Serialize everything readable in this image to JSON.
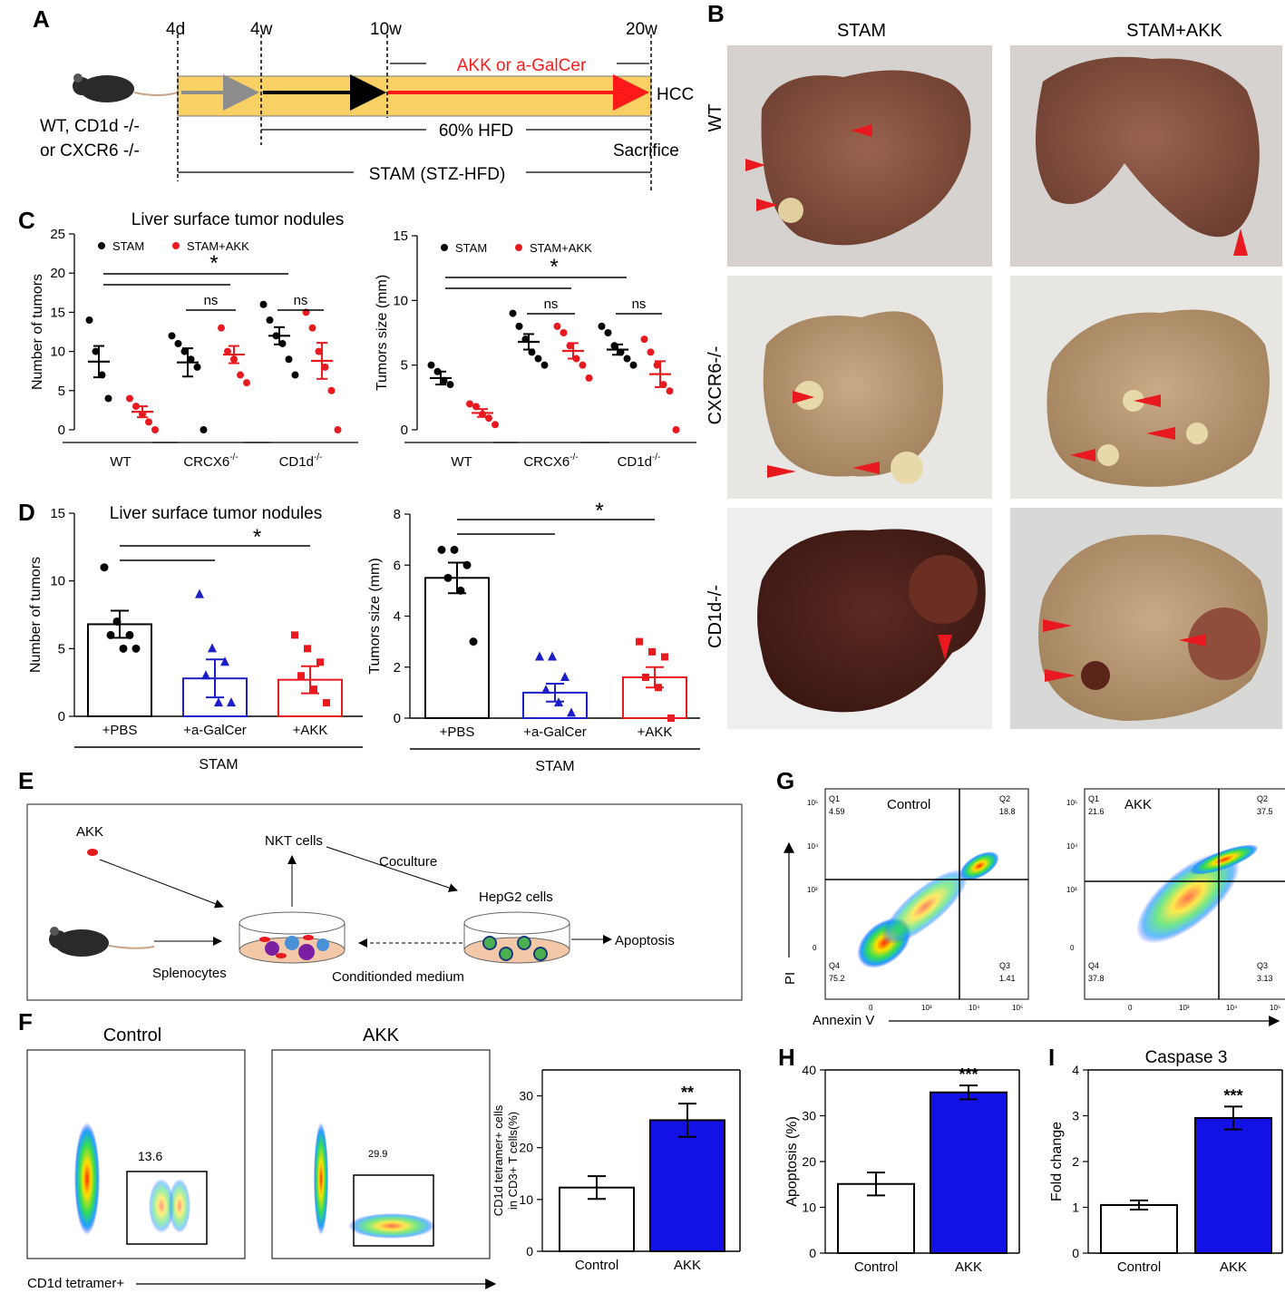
{
  "panel_labels": {
    "A": "A",
    "B": "B",
    "C": "C",
    "D": "D",
    "E": "E",
    "F": "F",
    "G": "G",
    "H": "H",
    "I": "I"
  },
  "colors": {
    "stam": "#000000",
    "akk": "#e8191f",
    "agalcer": "#1c1fc8",
    "bar_blue": "#1212e6",
    "timeline_fill": "#f8d064",
    "arrow_red": "#ff1a1a",
    "arrow_gray": "#8c8c8c"
  },
  "timeline": {
    "times": [
      "4d",
      "4w",
      "10w",
      "20w"
    ],
    "treatment": "AKK or  a-GalCer",
    "hcc": "HCC",
    "hfd": "60% HFD",
    "sacrifice": "Sacrifice",
    "stam": "STAM (STZ-HFD)",
    "genotype_line1": "WT, CD1d -/-",
    "genotype_line2": "or CXCR6  -/-"
  },
  "photos": {
    "col_headers": [
      "STAM",
      "STAM+AKK"
    ],
    "row_labels": [
      "WT",
      "CXCR6-/-",
      "CD1d-/-"
    ]
  },
  "schematic": {
    "akk": "AKK",
    "nkt": "NKT cells",
    "coculture": "Coculture",
    "hepg2": "HepG2 cells",
    "apoptosis": "Apoptosis",
    "splenocytes": "Splenocytes",
    "conditioned": "Conditionded medium"
  },
  "flow_g": {
    "control_title": "Control",
    "akk_title": "AKK",
    "y_axis": "PI",
    "x_axis": "Annexin V",
    "control_quadrants": {
      "q1": "Q1",
      "q1v": "4.59",
      "q2": "Q2",
      "q2v": "18.8",
      "q3": "Q3",
      "q3v": "1.41",
      "q4": "Q4",
      "q4v": "75.2"
    },
    "akk_quadrants": {
      "q1": "Q1",
      "q1v": "21.6",
      "q2": "Q2",
      "q2v": "37.5",
      "q3": "Q3",
      "q3v": "3.13",
      "q4": "Q4",
      "q4v": "37.8"
    },
    "ticks": [
      "0",
      "10³",
      "10⁴",
      "10⁵"
    ],
    "yticks": [
      "0",
      "10³",
      "10⁴",
      "10⁵"
    ]
  },
  "flow_f": {
    "control_title": "Control",
    "akk_title": "AKK",
    "control_gate": "13.6",
    "akk_gate": "29.9",
    "x_axis": "CD1d tetramer+"
  },
  "chart_data": [
    {
      "id": "C_left",
      "type": "scatter",
      "title": "Liver surface tumor nodules",
      "ylabel": "Number of tumors",
      "ylim": [
        0,
        25
      ],
      "yticks": [
        0,
        5,
        10,
        15,
        20,
        25
      ],
      "legend": [
        "STAM",
        "STAM+AKK"
      ],
      "groups": [
        "WT",
        "CRCX6",
        "CD1d"
      ],
      "group_sup": [
        "",
        "-/-",
        "-/-"
      ],
      "series": [
        {
          "name": "STAM",
          "group": 0,
          "points": [
            14,
            10,
            7,
            4
          ],
          "mean": 8.7,
          "sem": 2.0
        },
        {
          "name": "STAM+AKK",
          "group": 0,
          "points": [
            4,
            3,
            2,
            1,
            0
          ],
          "mean": 2.3,
          "sem": 0.7
        },
        {
          "name": "STAM",
          "group": 1,
          "points": [
            12,
            11,
            10,
            9,
            8,
            0
          ],
          "mean": 8.6,
          "sem": 1.8
        },
        {
          "name": "STAM+AKK",
          "group": 1,
          "points": [
            13,
            10,
            9,
            7,
            6
          ],
          "mean": 9.6,
          "sem": 1.1
        },
        {
          "name": "STAM",
          "group": 2,
          "points": [
            16,
            14,
            12,
            11,
            9,
            7
          ],
          "mean": 12.0,
          "sem": 1.1
        },
        {
          "name": "STAM+AKK",
          "group": 2,
          "points": [
            15,
            13,
            10,
            8,
            5,
            0
          ],
          "mean": 8.8,
          "sem": 2.3
        }
      ],
      "sig_labels": [
        "*",
        "ns",
        "ns"
      ]
    },
    {
      "id": "C_right",
      "type": "scatter",
      "ylabel": "Tumors size (mm)",
      "ylim": [
        0,
        15
      ],
      "yticks": [
        0,
        5,
        10,
        15
      ],
      "legend": [
        "STAM",
        "STAM+AKK"
      ],
      "groups": [
        "WT",
        "CRCX6",
        "CD1d"
      ],
      "group_sup": [
        "",
        "-/-",
        "-/-"
      ],
      "series": [
        {
          "name": "STAM",
          "group": 0,
          "points": [
            5,
            4.5,
            3.8,
            3.5
          ],
          "mean": 4.0,
          "sem": 0.5
        },
        {
          "name": "STAM+AKK",
          "group": 0,
          "points": [
            2,
            1.8,
            1.2,
            0.9,
            0.4
          ],
          "mean": 1.3,
          "sem": 0.3
        },
        {
          "name": "STAM",
          "group": 1,
          "points": [
            9,
            8,
            7,
            6,
            5.5,
            5
          ],
          "mean": 6.8,
          "sem": 0.6
        },
        {
          "name": "STAM+AKK",
          "group": 1,
          "points": [
            8,
            7.5,
            6.5,
            5.5,
            5,
            4
          ],
          "mean": 6.1,
          "sem": 0.6
        },
        {
          "name": "STAM",
          "group": 2,
          "points": [
            8,
            7.5,
            6.5,
            6,
            5.5,
            5
          ],
          "mean": 6.2,
          "sem": 0.4
        },
        {
          "name": "STAM+AKK",
          "group": 2,
          "points": [
            7,
            6,
            5,
            3.5,
            3,
            0
          ],
          "mean": 4.3,
          "sem": 1.0
        }
      ],
      "sig_labels": [
        "*",
        "ns",
        "ns"
      ]
    },
    {
      "id": "D_left",
      "type": "bar",
      "title": "Liver surface tumor nodules",
      "ylabel": "Number of tumors",
      "ylim": [
        0,
        15
      ],
      "yticks": [
        0,
        5,
        10,
        15
      ],
      "categories": [
        "+PBS",
        "+a-GalCer",
        "+AKK"
      ],
      "group_label": "STAM",
      "values": [
        6.8,
        2.8,
        2.7
      ],
      "errors": [
        1.0,
        1.4,
        1.0
      ],
      "points": [
        [
          11,
          7,
          6,
          6,
          5,
          5
        ],
        [
          9,
          5,
          4,
          3,
          1,
          1
        ],
        [
          6,
          5,
          4,
          3,
          2,
          1
        ]
      ],
      "sig_label": "*"
    },
    {
      "id": "D_right",
      "type": "bar",
      "ylabel": "Tumors size (mm)",
      "ylim": [
        0,
        8
      ],
      "yticks": [
        0,
        2,
        4,
        6,
        8
      ],
      "categories": [
        "+PBS",
        "+a-GalCer",
        "+AKK"
      ],
      "group_label": "STAM",
      "values": [
        5.5,
        1.0,
        1.6
      ],
      "errors": [
        0.6,
        0.35,
        0.4
      ],
      "points": [
        [
          6.6,
          6.6,
          6,
          5.5,
          5,
          3
        ],
        [
          2.4,
          2.4,
          1.6,
          1.1,
          0.6,
          0.2
        ],
        [
          3,
          2.6,
          2.4,
          1.6,
          1.2,
          0
        ]
      ],
      "sig_label": "*"
    },
    {
      "id": "F_bar",
      "type": "bar",
      "ylabel": "CD1d tetramer+ cells",
      "ylabel2": "in CD3+ T cells(%)",
      "ylim": [
        0,
        35
      ],
      "yticks": [
        0,
        10,
        20,
        30
      ],
      "categories": [
        "Control",
        "AKK"
      ],
      "values": [
        12.3,
        25.3
      ],
      "errors": [
        2.2,
        3.2
      ],
      "sig_label": "**"
    },
    {
      "id": "H_bar",
      "type": "bar",
      "ylabel": "Apoptosis (%)",
      "ylim": [
        0,
        40
      ],
      "yticks": [
        0,
        10,
        20,
        30,
        40
      ],
      "categories": [
        "Control",
        "AKK"
      ],
      "values": [
        15.1,
        35.1
      ],
      "errors": [
        2.5,
        1.5
      ],
      "sig_label": "***"
    },
    {
      "id": "I_bar",
      "type": "bar",
      "title": "Caspase 3",
      "ylabel": "Fold change",
      "ylim": [
        0,
        4
      ],
      "yticks": [
        0,
        1,
        2,
        3,
        4
      ],
      "categories": [
        "Control",
        "AKK"
      ],
      "values": [
        1.05,
        2.95
      ],
      "errors": [
        0.1,
        0.25
      ],
      "sig_label": "***"
    }
  ]
}
